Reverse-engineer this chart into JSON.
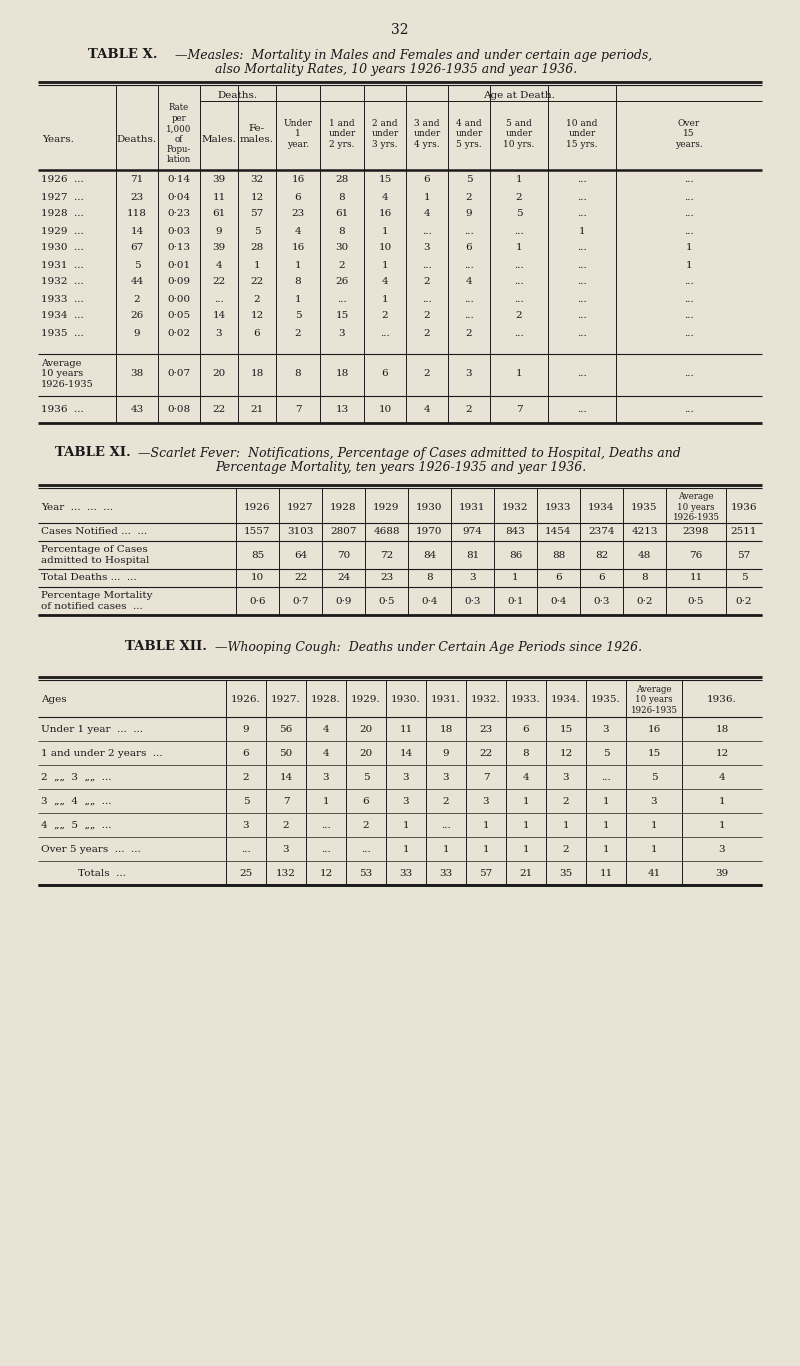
{
  "bg_color": "#e8e3d5",
  "text_color": "#1a1a1a",
  "page_number": "32",
  "table10": {
    "col_headers": [
      "Years.",
      "Deaths.",
      "Rate\nper\n1,000\nof\nPopu-\nlation",
      "Males.",
      "Fe-\nmales.",
      "Under\n1\nyear.",
      "1 and\nunder\n2 yrs.",
      "2 and\nunder\n3 yrs.",
      "3 and\nunder\n4 yrs.",
      "4 and\nunder\n5 yrs.",
      "5 and\nunder\n10 yrs.",
      "10 and\nunder\n15 yrs.",
      "Over\n15\nyears."
    ],
    "rows": [
      [
        "1926  ...",
        "71",
        "0·14",
        "39",
        "32",
        "16",
        "28",
        "15",
        "6",
        "5",
        "1",
        "...",
        "..."
      ],
      [
        "1927  ...",
        "23",
        "0·04",
        "11",
        "12",
        "6",
        "8",
        "4",
        "1",
        "2",
        "2",
        "...",
        "..."
      ],
      [
        "1928  ...",
        "118",
        "0·23",
        "61",
        "57",
        "23",
        "61",
        "16",
        "4",
        "9",
        "5",
        "...",
        "..."
      ],
      [
        "1929  ...",
        "14",
        "0·03",
        "9",
        "5",
        "4",
        "8",
        "1",
        "...",
        "...",
        "...",
        "1",
        "..."
      ],
      [
        "1930  ...",
        "67",
        "0·13",
        "39",
        "28",
        "16",
        "30",
        "10",
        "3",
        "6",
        "1",
        "...",
        "1"
      ],
      [
        "1931  ...",
        "5",
        "0·01",
        "4",
        "1",
        "1",
        "2",
        "1",
        "...",
        "...",
        "...",
        "...",
        "1"
      ],
      [
        "1932  ...",
        "44",
        "0·09",
        "22",
        "22",
        "8",
        "26",
        "4",
        "2",
        "4",
        "...",
        "...",
        "..."
      ],
      [
        "1933  ...",
        "2",
        "0·00",
        "...",
        "2",
        "1",
        "...",
        "1",
        "...",
        "...",
        "...",
        "...",
        "..."
      ],
      [
        "1934  ...",
        "26",
        "0·05",
        "14",
        "12",
        "5",
        "15",
        "2",
        "2",
        "...",
        "2",
        "...",
        "..."
      ],
      [
        "1935  ...",
        "9",
        "0·02",
        "3",
        "6",
        "2",
        "3",
        "...",
        "2",
        "2",
        "...",
        "...",
        "..."
      ]
    ],
    "avg_row": [
      "Average\n10 years\n1926-1935",
      "38",
      "0·07",
      "20",
      "18",
      "8",
      "18",
      "6",
      "2",
      "3",
      "1",
      "...",
      "..."
    ],
    "row_1936": [
      "1936  ...",
      "43",
      "0·08",
      "22",
      "21",
      "7",
      "13",
      "10",
      "4",
      "2",
      "7",
      "...",
      "..."
    ]
  },
  "table11": {
    "years": [
      "1926",
      "1927",
      "1928",
      "1929",
      "1930",
      "1931",
      "1932",
      "1933",
      "1934",
      "1935",
      "Average\n10 years\n1926-1935",
      "1936"
    ],
    "cases_notified": [
      "1557",
      "3103",
      "2807",
      "4688",
      "1970",
      "974",
      "843",
      "1454",
      "2374",
      "4213",
      "2398",
      "2511"
    ],
    "pct_admitted": [
      "85",
      "64",
      "70",
      "72",
      "84",
      "81",
      "86",
      "88",
      "82",
      "48",
      "76",
      "57"
    ],
    "total_deaths": [
      "10",
      "22",
      "24",
      "23",
      "8",
      "3",
      "1",
      "6",
      "6",
      "8",
      "11",
      "5"
    ],
    "pct_mortality": [
      "0·6",
      "0·7",
      "0·9",
      "0·5",
      "0·4",
      "0·3",
      "0·1",
      "0·4",
      "0·3",
      "0·2",
      "0·5",
      "0·2"
    ]
  },
  "table12": {
    "col_headers": [
      "Ages",
      "1926.",
      "1927.",
      "1928.",
      "1929.",
      "1930.",
      "1931.",
      "1932.",
      "1933.",
      "1934.",
      "1935.",
      "Average\n10 years\n1926-1935",
      "1936."
    ],
    "rows": [
      [
        "Under 1 year  ...  ...",
        "9",
        "56",
        "4",
        "20",
        "11",
        "18",
        "23",
        "6",
        "15",
        "3",
        "16",
        "18"
      ],
      [
        "1 and under 2 years  ...",
        "6",
        "50",
        "4",
        "20",
        "14",
        "9",
        "22",
        "8",
        "12",
        "5",
        "15",
        "12"
      ],
      [
        "2  „„  3  „„  ...",
        "2",
        "14",
        "3",
        "5",
        "3",
        "3",
        "7",
        "4",
        "3",
        "...",
        "5",
        "4"
      ],
      [
        "3  „„  4  „„  ...",
        "5",
        "7",
        "1",
        "6",
        "3",
        "2",
        "3",
        "1",
        "2",
        "1",
        "3",
        "1"
      ],
      [
        "4  „„  5  „„  ...",
        "3",
        "2",
        "...",
        "2",
        "1",
        "...",
        "1",
        "1",
        "1",
        "1",
        "1",
        "1"
      ],
      [
        "Over 5 years  ...  ...",
        "...",
        "3",
        "...",
        "...",
        "1",
        "1",
        "1",
        "1",
        "2",
        "1",
        "1",
        "3"
      ],
      [
        "Totals  ...",
        "25",
        "132",
        "12",
        "53",
        "33",
        "33",
        "57",
        "21",
        "35",
        "11",
        "41",
        "39"
      ]
    ]
  }
}
